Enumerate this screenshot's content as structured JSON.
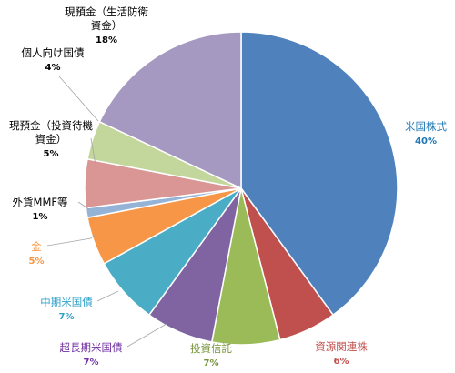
{
  "chart_data": {
    "type": "pie",
    "title": "",
    "slices": [
      {
        "label": "米国株式",
        "value": 40,
        "percent_text": "40%",
        "color": "#4F81BD",
        "label_color": "#1F77B4"
      },
      {
        "label": "資源関連株",
        "value": 6,
        "percent_text": "6%",
        "color": "#C0504D",
        "label_color": "#C0504D"
      },
      {
        "label": "投資信託",
        "value": 7,
        "percent_text": "7%",
        "color": "#9BBB59",
        "label_color": "#77933C"
      },
      {
        "label": "超長期米国債",
        "value": 7,
        "percent_text": "7%",
        "color": "#8064A2",
        "label_color": "#7030A0"
      },
      {
        "label": "中期米国債",
        "value": 7,
        "percent_text": "7%",
        "color": "#4BACC6",
        "label_color": "#31A3C8"
      },
      {
        "label": "金",
        "value": 5,
        "percent_text": "5%",
        "color": "#F79646",
        "label_color": "#F79646"
      },
      {
        "label": "外貨MMF等",
        "value": 1,
        "percent_text": "1%",
        "color": "#95B3D7",
        "label_color": "#000000"
      },
      {
        "label": "現預金（投資待機資金）",
        "value": 5,
        "percent_text": "5%",
        "color": "#D99694",
        "label_color": "#000000"
      },
      {
        "label": "個人向け国債",
        "value": 4,
        "percent_text": "4%",
        "color": "#C3D69B",
        "label_color": "#000000"
      },
      {
        "label": "現預金（生活防衛資金）",
        "value": 18,
        "percent_text": "18%",
        "color": "#A599C1",
        "label_color": "#000000"
      }
    ]
  }
}
